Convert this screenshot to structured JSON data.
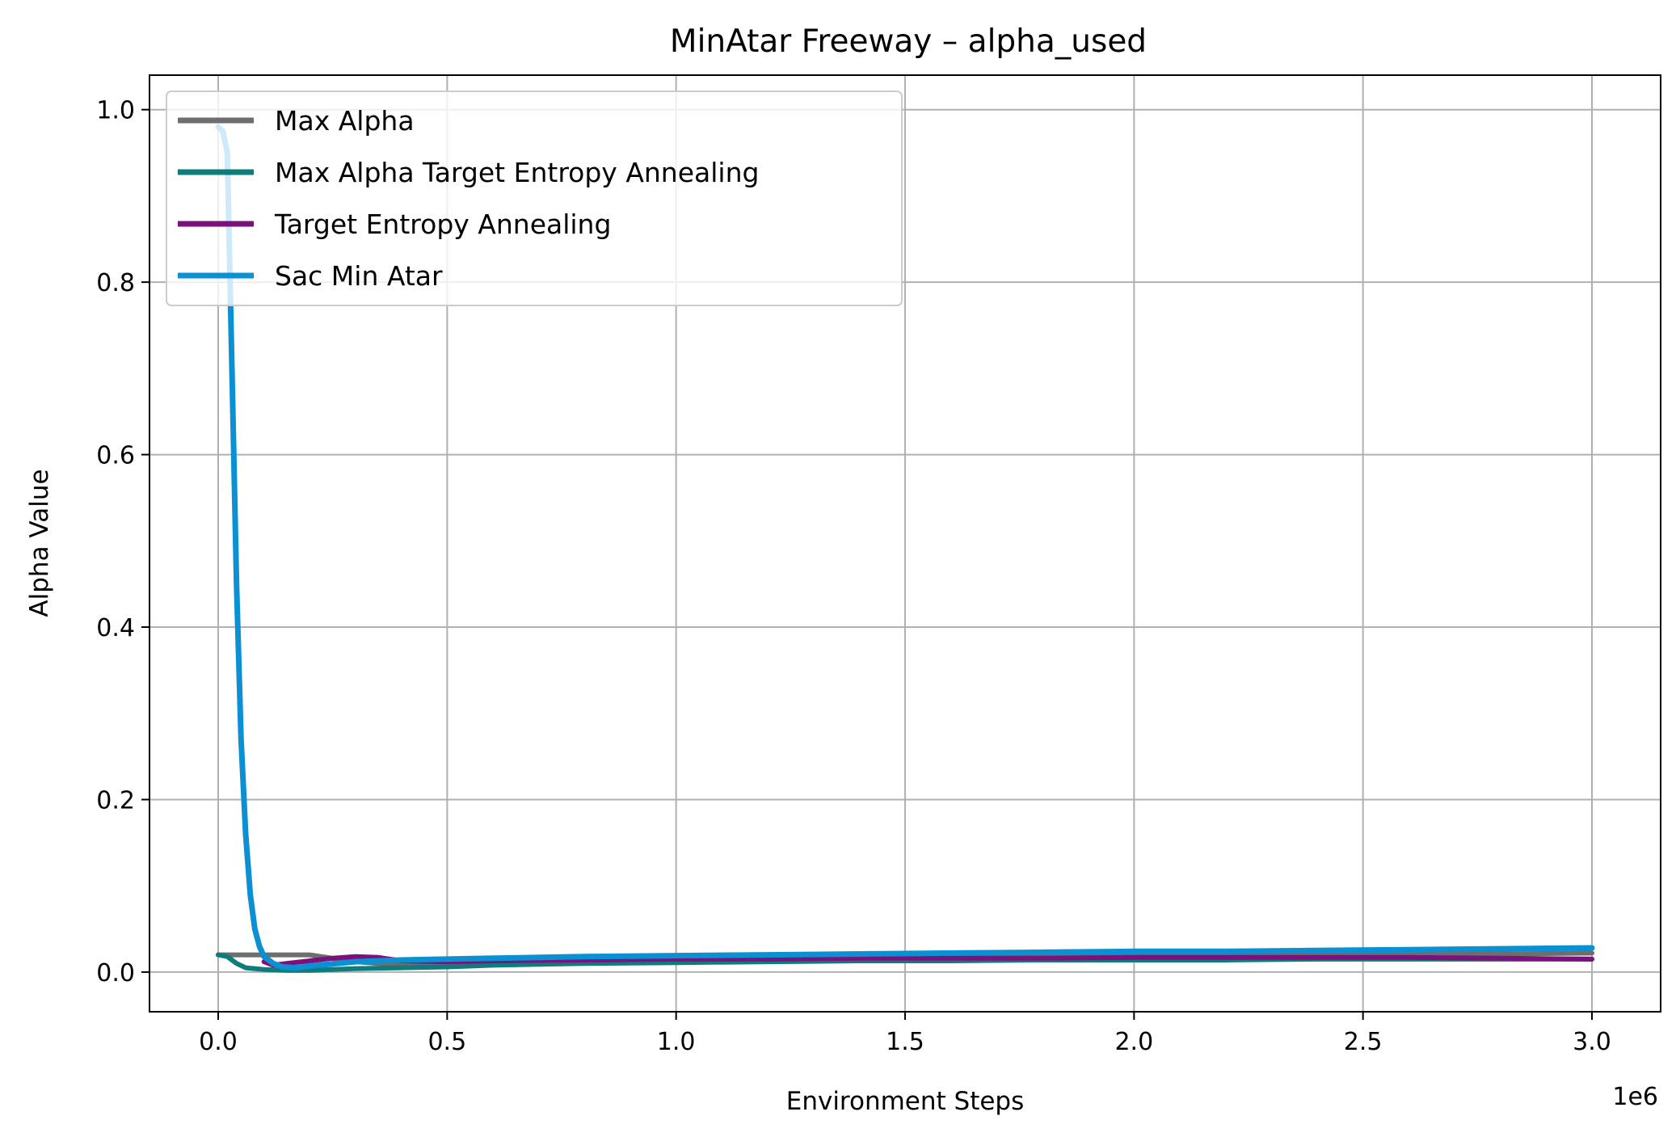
{
  "chart_data": {
    "type": "line",
    "title": "MinAtar Freeway – alpha_used",
    "xlabel": "Environment Steps",
    "ylabel": "Alpha Value",
    "x_scale_label": "1e6",
    "xlim": [
      -0.15,
      3.15
    ],
    "ylim": [
      -0.046,
      1.04
    ],
    "xticks": [
      0.0,
      0.5,
      1.0,
      1.5,
      2.0,
      2.5,
      3.0
    ],
    "xtick_labels": [
      "0.0",
      "0.5",
      "1.0",
      "1.5",
      "2.0",
      "2.5",
      "3.0"
    ],
    "yticks": [
      0.0,
      0.2,
      0.4,
      0.6,
      0.8,
      1.0
    ],
    "ytick_labels": [
      "0.0",
      "0.2",
      "0.4",
      "0.6",
      "0.8",
      "1.0"
    ],
    "grid": true,
    "legend_position": "top-left",
    "series": [
      {
        "name": "Max Alpha",
        "color": "#6e6e6e",
        "x": [
          0,
          0.05,
          0.1,
          0.15,
          0.2,
          0.3,
          0.4,
          0.5,
          0.6,
          0.7,
          0.8,
          1.0,
          1.2,
          1.4,
          1.6,
          1.8,
          2.0,
          2.2,
          2.4,
          2.6,
          2.8,
          3.0
        ],
        "y": [
          0.02,
          0.02,
          0.02,
          0.02,
          0.02,
          0.012,
          0.008,
          0.007,
          0.009,
          0.01,
          0.012,
          0.014,
          0.015,
          0.016,
          0.017,
          0.018,
          0.019,
          0.019,
          0.02,
          0.021,
          0.021,
          0.022
        ]
      },
      {
        "name": "Max Alpha Target Entropy Annealing",
        "color": "#0e7c7b",
        "x": [
          0,
          0.02,
          0.04,
          0.06,
          0.1,
          0.15,
          0.2,
          0.3,
          0.4,
          0.5,
          0.6,
          0.7,
          0.8,
          1.0,
          1.2,
          1.4,
          1.6,
          1.8,
          2.0,
          2.2,
          2.4,
          2.6,
          2.8,
          3.0
        ],
        "y": [
          0.02,
          0.018,
          0.01,
          0.005,
          0.003,
          0.002,
          0.002,
          0.004,
          0.005,
          0.006,
          0.008,
          0.009,
          0.01,
          0.011,
          0.012,
          0.013,
          0.013,
          0.014,
          0.014,
          0.014,
          0.015,
          0.015,
          0.015,
          0.015
        ]
      },
      {
        "name": "Target Entropy Annealing",
        "color": "#7a117c",
        "x": [
          0.1,
          0.12,
          0.15,
          0.2,
          0.25,
          0.3,
          0.35,
          0.4,
          0.5,
          0.6,
          0.8,
          1.0,
          1.2,
          1.4,
          1.6,
          1.8,
          2.0,
          2.2,
          2.4,
          2.6,
          2.8,
          3.0
        ],
        "y": [
          0.012,
          0.008,
          0.01,
          0.013,
          0.016,
          0.018,
          0.017,
          0.013,
          0.012,
          0.013,
          0.014,
          0.015,
          0.015,
          0.016,
          0.016,
          0.016,
          0.017,
          0.017,
          0.017,
          0.017,
          0.016,
          0.015
        ]
      },
      {
        "name": "Sac Min Atar",
        "color": "#0c90d4",
        "x": [
          0,
          0.01,
          0.02,
          0.03,
          0.04,
          0.05,
          0.06,
          0.07,
          0.08,
          0.09,
          0.1,
          0.12,
          0.14,
          0.17,
          0.2,
          0.3,
          0.4,
          0.5,
          0.6,
          0.8,
          1.0,
          1.2,
          1.4,
          1.6,
          1.8,
          2.0,
          2.2,
          2.4,
          2.6,
          2.8,
          3.0
        ],
        "y": [
          0.98,
          0.975,
          0.95,
          0.7,
          0.45,
          0.27,
          0.16,
          0.09,
          0.05,
          0.03,
          0.018,
          0.01,
          0.006,
          0.005,
          0.007,
          0.012,
          0.014,
          0.015,
          0.016,
          0.018,
          0.019,
          0.02,
          0.021,
          0.022,
          0.023,
          0.024,
          0.024,
          0.025,
          0.026,
          0.027,
          0.028
        ]
      }
    ]
  }
}
